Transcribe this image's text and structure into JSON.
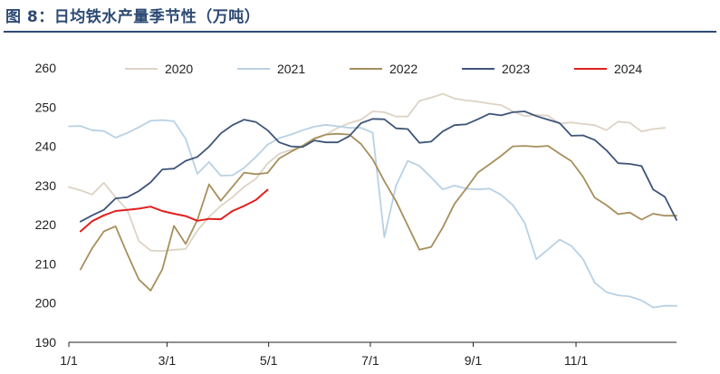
{
  "header": {
    "title": "图 8：日均铁水产量季节性（万吨）"
  },
  "chart_data": {
    "type": "line",
    "title": "图 8：日均铁水产量季节性（万吨）",
    "xlabel": "",
    "ylabel": "",
    "ylim": [
      190,
      260
    ],
    "xlim": [
      0,
      52
    ],
    "y_ticks": [
      190,
      200,
      210,
      220,
      230,
      240,
      250,
      260
    ],
    "x_ticks": [
      {
        "label": "1/1",
        "week": 0
      },
      {
        "label": "3/1",
        "week": 8.4
      },
      {
        "label": "5/1",
        "week": 17.1
      },
      {
        "label": "7/1",
        "week": 25.8
      },
      {
        "label": "9/1",
        "week": 34.6
      },
      {
        "label": "11/1",
        "week": 43.4
      }
    ],
    "legend_position": "top",
    "series": [
      {
        "name": "2020",
        "color": "#ddd3c5",
        "x": [
          0,
          1,
          2,
          3,
          4,
          5,
          6,
          7,
          8,
          9,
          10,
          11,
          12,
          13,
          14,
          15,
          16,
          17,
          18,
          19,
          20,
          21,
          22,
          23,
          24,
          25,
          26,
          27,
          28,
          29,
          30,
          31,
          32,
          33,
          34,
          35,
          36,
          37,
          38,
          39,
          40,
          41,
          42,
          43,
          44,
          45,
          46,
          47,
          48,
          49,
          50,
          51
        ],
        "values": [
          229.6,
          228.8,
          227.7,
          230.7,
          227.0,
          223.8,
          215.8,
          213.4,
          213.3,
          213.6,
          213.8,
          218.5,
          222.0,
          224.8,
          227.0,
          229.7,
          231.7,
          235.6,
          238.1,
          239.1,
          240.2,
          241.8,
          243.0,
          244.7,
          245.9,
          246.8,
          248.9,
          248.7,
          247.6,
          247.6,
          251.6,
          252.4,
          253.4,
          252.2,
          251.7,
          251.4,
          250.9,
          250.5,
          248.9,
          247.7,
          248.0,
          247.8,
          245.8,
          246.1,
          245.7,
          245.4,
          244.1,
          246.3,
          246.0,
          243.8,
          244.4,
          244.7
        ]
      },
      {
        "name": "2021",
        "color": "#b8d1e4",
        "x": [
          0,
          1,
          2,
          3,
          4,
          5,
          6,
          7,
          8,
          9,
          10,
          11,
          12,
          13,
          14,
          15,
          16,
          17,
          18,
          19,
          20,
          21,
          22,
          23,
          24,
          25,
          26,
          27,
          28,
          29,
          30,
          31,
          32,
          33,
          34,
          35,
          36,
          37,
          38,
          39,
          40,
          41,
          42,
          43,
          44,
          45,
          46,
          47,
          48,
          49,
          50,
          51,
          52
        ],
        "values": [
          245.1,
          245.2,
          244.1,
          243.9,
          242.2,
          243.4,
          244.9,
          246.5,
          246.7,
          246.4,
          241.9,
          233.0,
          236.0,
          232.5,
          232.6,
          234.5,
          237.3,
          240.4,
          242.1,
          243.0,
          244.1,
          245.0,
          245.5,
          245.1,
          244.7,
          244.7,
          243.5,
          216.8,
          230.0,
          236.3,
          235.0,
          232.1,
          229.0,
          230.0,
          229.2,
          229.0,
          229.2,
          227.6,
          225.0,
          220.5,
          211.2,
          213.7,
          216.2,
          214.6,
          211.2,
          205.2,
          202.8,
          202.0,
          201.7,
          200.7,
          198.9,
          199.3,
          199.3
        ]
      },
      {
        "name": "2022",
        "color": "#a68f5c",
        "x": [
          1,
          2,
          3,
          4,
          5,
          6,
          7,
          8,
          9,
          10,
          11,
          12,
          13,
          14,
          15,
          16,
          17,
          18,
          19,
          20,
          21,
          22,
          23,
          24,
          25,
          26,
          27,
          28,
          29,
          30,
          31,
          32,
          33,
          34,
          35,
          36,
          37,
          38,
          39,
          40,
          41,
          42,
          43,
          44,
          45,
          46,
          47,
          48,
          49,
          50,
          51,
          52
        ],
        "values": [
          208.6,
          214.0,
          218.3,
          219.6,
          212.6,
          206.0,
          203.2,
          208.6,
          219.7,
          215.1,
          221.2,
          230.3,
          226.1,
          229.7,
          233.3,
          232.9,
          233.2,
          236.9,
          238.6,
          240.1,
          242.0,
          243.0,
          243.2,
          243.0,
          240.6,
          236.7,
          231.1,
          226.0,
          219.8,
          213.6,
          214.3,
          219.3,
          225.3,
          229.2,
          233.3,
          235.4,
          237.6,
          240.0,
          240.1,
          239.9,
          240.1,
          238.1,
          236.2,
          232.2,
          226.9,
          225.0,
          222.7,
          223.1,
          221.3,
          222.8,
          222.3,
          222.3
        ]
      },
      {
        "name": "2023",
        "color": "#3e5578",
        "x": [
          1,
          2,
          3,
          4,
          5,
          6,
          7,
          8,
          9,
          10,
          11,
          12,
          13,
          14,
          15,
          16,
          17,
          18,
          19,
          20,
          21,
          22,
          23,
          24,
          25,
          26,
          27,
          28,
          29,
          30,
          31,
          32,
          33,
          34,
          35,
          36,
          37,
          38,
          39,
          40,
          41,
          42,
          43,
          44,
          45,
          46,
          47,
          48,
          49,
          50,
          51,
          52
        ],
        "values": [
          220.8,
          222.4,
          223.8,
          226.7,
          227.0,
          228.6,
          230.8,
          234.1,
          234.3,
          236.3,
          237.3,
          239.9,
          243.3,
          245.4,
          246.8,
          246.2,
          244.1,
          241.0,
          240.0,
          239.8,
          241.5,
          241.0,
          241.0,
          242.6,
          245.9,
          247.0,
          246.9,
          244.6,
          244.4,
          240.9,
          241.2,
          243.8,
          245.4,
          245.6,
          246.9,
          248.3,
          247.9,
          248.7,
          248.9,
          247.7,
          246.8,
          245.9,
          242.7,
          242.8,
          241.6,
          239.0,
          235.7,
          235.5,
          235.0,
          229.0,
          227.1,
          221.2
        ]
      },
      {
        "name": "2024",
        "color": "#e0201e",
        "x": [
          1,
          2,
          3,
          4,
          5,
          6,
          7,
          8,
          9,
          10,
          11,
          12,
          13,
          14,
          15,
          16,
          17
        ],
        "values": [
          218.3,
          220.9,
          222.4,
          223.5,
          223.8,
          224.1,
          224.6,
          223.5,
          222.8,
          222.2,
          221.0,
          221.5,
          221.4,
          223.5,
          224.8,
          226.3,
          228.9
        ]
      }
    ]
  }
}
